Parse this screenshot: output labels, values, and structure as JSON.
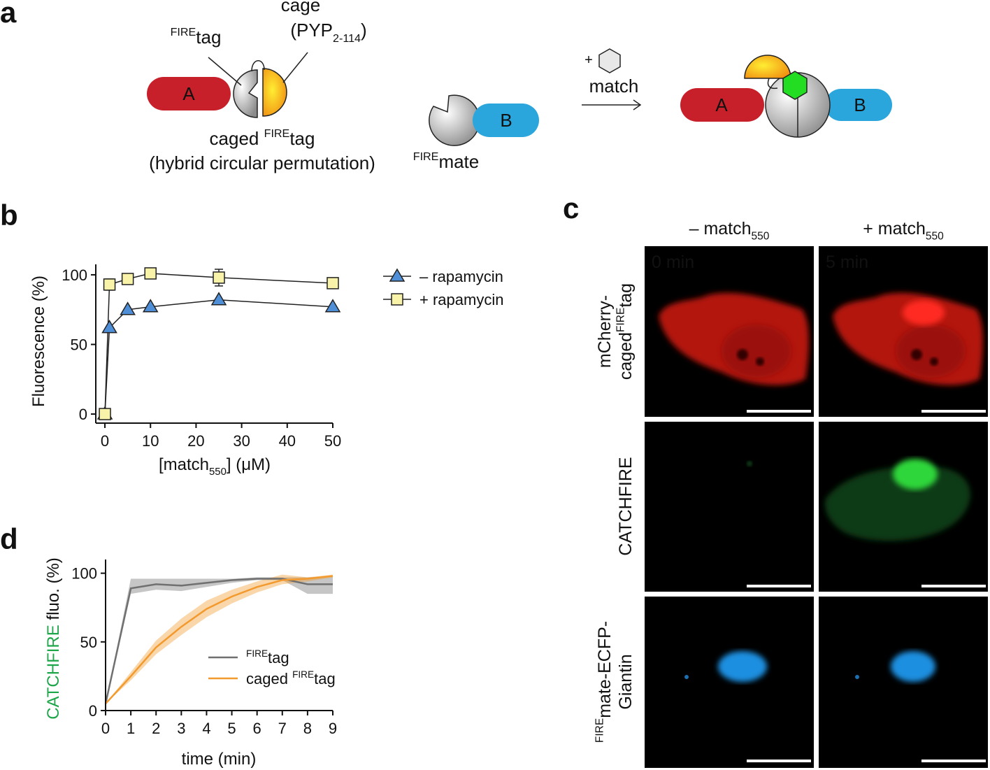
{
  "panel_a": {
    "letter": "a",
    "cage": "cage",
    "cage_name": [
      "(PYP",
      {
        "sub": "2-114"
      },
      ")"
    ],
    "fire_tag": [
      {
        "sup": "FIRE"
      },
      "tag"
    ],
    "protein_a": "A",
    "caged_label": [
      "caged ",
      {
        "sup": "FIRE"
      },
      "tag"
    ],
    "caged_note": "(hybrid circular permutation)",
    "fire_mate": [
      {
        "sup": "FIRE"
      },
      "mate"
    ],
    "protein_b": "B",
    "plus": "+",
    "match": "match",
    "product_a": "A",
    "product_b": "B"
  },
  "panel_c": {
    "letter": "c",
    "columns": [
      [
        "– match",
        {
          "sub": "550"
        }
      ],
      [
        "+ match",
        {
          "sub": "550"
        }
      ]
    ],
    "times": [
      "0 min",
      "5 min"
    ],
    "rows": [
      [
        [
          "mCherry-"
        ],
        [
          "caged",
          {
            "sup": "FIRE"
          },
          "tag"
        ]
      ],
      [
        [
          "CATCHFIRE"
        ]
      ],
      [
        [
          {
            "sup": "FIRE"
          },
          "mate-ECFP-"
        ],
        [
          "Giantin"
        ]
      ]
    ]
  },
  "chart_data": [
    {
      "type": "line",
      "letter": "b",
      "x": [
        0,
        1,
        5,
        10,
        25,
        50
      ],
      "xlabel": [
        "[match",
        {
          "sub": "550"
        },
        "] (μM)"
      ],
      "ylabel": [
        "Fluorescence (%)"
      ],
      "xlim": [
        -2,
        50
      ],
      "ylim": [
        -6.5,
        107.5
      ],
      "xticks": [
        0,
        10,
        20,
        30,
        40,
        50
      ],
      "yticks": [
        0,
        50,
        100
      ],
      "legend": "right",
      "series": [
        {
          "name": [
            "– rapamycin"
          ],
          "color": "#4f8fd8",
          "marker": "triangle",
          "values": [
            0,
            62,
            75,
            77,
            82,
            77
          ]
        },
        {
          "name": [
            "+ rapamycin"
          ],
          "color": "#f8f3a8",
          "marker": "square",
          "values": [
            0,
            93,
            97,
            101,
            98,
            94
          ],
          "errors": [
            0,
            4,
            2,
            2,
            6,
            2
          ]
        }
      ]
    },
    {
      "type": "line",
      "letter": "d",
      "x": [
        0,
        1,
        2,
        3,
        4,
        5,
        6,
        7,
        8,
        9
      ],
      "xlabel": [
        "time (min)"
      ],
      "ylabel": [
        {
          "text": "CATCHFIRE",
          "color": "#1fa64a"
        },
        " fluo. (%)"
      ],
      "xlim": [
        0,
        9
      ],
      "ylim": [
        0,
        110
      ],
      "xticks": [
        0,
        1,
        2,
        3,
        4,
        5,
        6,
        7,
        8,
        9
      ],
      "yticks": [
        0,
        50,
        100
      ],
      "legend": "center",
      "series": [
        {
          "name": [
            {
              "sup": "FIRE"
            },
            "tag"
          ],
          "color": "#707070",
          "values": [
            5,
            89,
            92,
            91,
            93,
            95,
            96,
            96,
            92,
            92
          ],
          "lower": [
            5,
            85,
            88,
            87,
            90,
            93,
            95,
            95,
            85,
            85
          ],
          "upper": [
            5,
            96,
            96,
            96,
            96,
            96,
            97,
            97,
            97,
            98
          ]
        },
        {
          "name": [
            "caged ",
            {
              "sup": "FIRE"
            },
            "tag"
          ],
          "color": "#f29a2e",
          "values": [
            5,
            25,
            46,
            61,
            74,
            83,
            90,
            95,
            96,
            98
          ],
          "lower": [
            5,
            22,
            41,
            55,
            68,
            78,
            86,
            92,
            94,
            97
          ],
          "upper": [
            5,
            28,
            51,
            67,
            80,
            88,
            94,
            99,
            97,
            99
          ]
        }
      ]
    }
  ]
}
